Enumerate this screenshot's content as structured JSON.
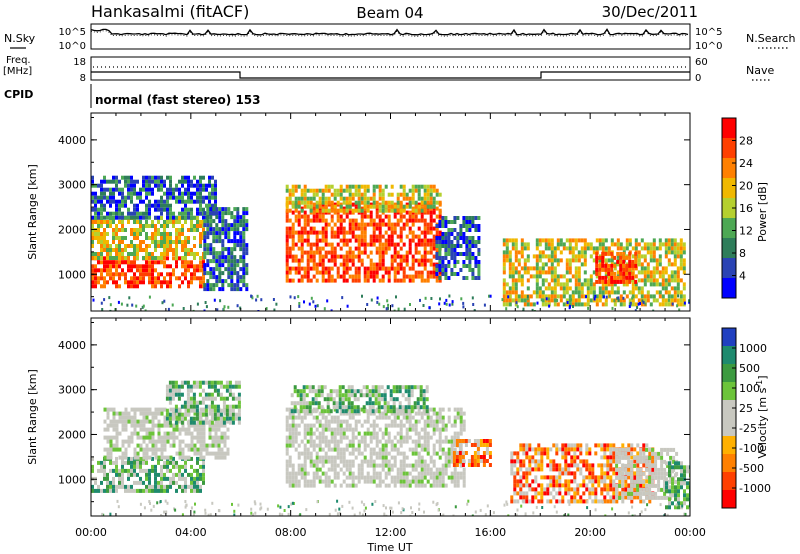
{
  "header": {
    "station": "Hankasalmi (fitACF)",
    "beam": "Beam 04",
    "date": "30/Dec/2011"
  },
  "left_labels": {
    "nsky": "N.Sky",
    "freq": "Freq.",
    "freq_unit": "[MHz]",
    "cpid": "CPID"
  },
  "right_labels": {
    "nsearch": "N.Search",
    "nave": "Nave"
  },
  "noise_panel": {
    "left_ticks": [
      "10^5",
      "10^0"
    ],
    "right_ticks": [
      "10^5",
      "10^0"
    ]
  },
  "freq_panel": {
    "left_ticks": [
      "18",
      "8"
    ],
    "right_ticks": [
      "60",
      "0"
    ]
  },
  "cpid_text": "normal (fast stereo) 153",
  "colors": {
    "frame": "#000000",
    "power": [
      "#0000ff",
      "#2a43b4",
      "#2e7d5a",
      "#4da854",
      "#b5d02f",
      "#f0b800",
      "#ff8000",
      "#ff4000",
      "#ff0000"
    ],
    "velocity_pos": [
      "#2040c0",
      "#1e8a6e",
      "#3c9a40",
      "#6cc43a"
    ],
    "velocity_gray": "#c8c8c0",
    "velocity_neg": [
      "#ffb000",
      "#ff8000",
      "#ff4000",
      "#ff0000"
    ]
  },
  "chart_data": [
    {
      "type": "heatmap",
      "name": "power-panel",
      "xlabel": "Time UT",
      "ylabel": "Slant Range [km]",
      "xlim": [
        0,
        24
      ],
      "ylim": [
        180,
        4600
      ],
      "yticks": [
        "4000",
        "3000",
        "2000",
        "1000"
      ],
      "colorbar": {
        "label": "Power [dB]",
        "ticks": [
          "28",
          "24",
          "20",
          "16",
          "12",
          "8",
          "4"
        ],
        "range": [
          0,
          32
        ]
      },
      "regions": [
        {
          "t0": 0.0,
          "t1": 4.5,
          "r0": 700,
          "r1": 1400,
          "level": "high"
        },
        {
          "t0": 0.0,
          "t1": 4.5,
          "r0": 1400,
          "r1": 2300,
          "level": "mid"
        },
        {
          "t0": 0.0,
          "t1": 5.0,
          "r0": 2300,
          "r1": 3200,
          "level": "low"
        },
        {
          "t0": 4.5,
          "t1": 6.3,
          "r0": 700,
          "r1": 2500,
          "level": "low"
        },
        {
          "t0": 7.8,
          "t1": 14.0,
          "r0": 900,
          "r1": 2600,
          "level": "high"
        },
        {
          "t0": 7.8,
          "t1": 14.0,
          "r0": 2400,
          "r1": 3000,
          "level": "mid"
        },
        {
          "t0": 13.8,
          "t1": 15.5,
          "r0": 900,
          "r1": 2300,
          "level": "low"
        },
        {
          "t0": 16.5,
          "t1": 23.8,
          "r0": 300,
          "r1": 1800,
          "level": "mid"
        },
        {
          "t0": 20.2,
          "t1": 21.8,
          "r0": 800,
          "r1": 1500,
          "level": "high"
        }
      ]
    },
    {
      "type": "heatmap",
      "name": "velocity-panel",
      "xlabel": "Time UT",
      "ylabel": "Slant Range [km]",
      "xlim": [
        0,
        24
      ],
      "ylim": [
        180,
        4600
      ],
      "yticks": [
        "4000",
        "3000",
        "2000",
        "1000"
      ],
      "xticks": [
        "00:00",
        "04:00",
        "08:00",
        "12:00",
        "16:00",
        "20:00",
        "00:00"
      ],
      "colorbar": {
        "label": "Velocity [m s",
        "label_sup": "-1",
        "label_end": "]",
        "ticks": [
          "1000",
          "500",
          "100",
          "25",
          "-25",
          "-100",
          "-500",
          "-1000"
        ]
      },
      "regions": [
        {
          "t0": 0.0,
          "t1": 4.5,
          "r0": 700,
          "r1": 1500,
          "level": "pos"
        },
        {
          "t0": 0.5,
          "t1": 5.5,
          "r0": 1500,
          "r1": 2600,
          "level": "gray"
        },
        {
          "t0": 3.0,
          "t1": 6.0,
          "r0": 2300,
          "r1": 3200,
          "level": "pos"
        },
        {
          "t0": 7.8,
          "t1": 15.0,
          "r0": 900,
          "r1": 2600,
          "level": "gray"
        },
        {
          "t0": 8.0,
          "t1": 13.5,
          "r0": 2500,
          "r1": 3100,
          "level": "pos"
        },
        {
          "t0": 14.5,
          "t1": 16.0,
          "r0": 1300,
          "r1": 1900,
          "level": "neg"
        },
        {
          "t0": 16.8,
          "t1": 22.5,
          "r0": 500,
          "r1": 1800,
          "level": "neg"
        },
        {
          "t0": 21.0,
          "t1": 23.5,
          "r0": 600,
          "r1": 1700,
          "level": "gray"
        },
        {
          "t0": 23.0,
          "t1": 24.0,
          "r0": 400,
          "r1": 1400,
          "level": "pos"
        }
      ]
    }
  ]
}
